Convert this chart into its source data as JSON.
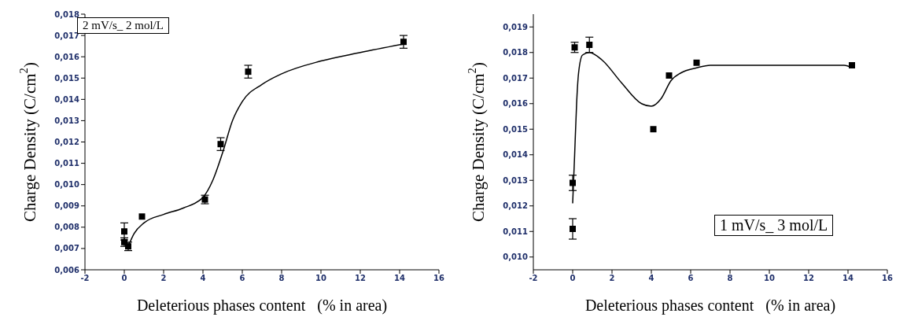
{
  "chart_data": [
    {
      "type": "scatter",
      "xlabel": "Deleterious phases content   (% in area)",
      "ylabel": "Charge Density (C/cm$^{2}$)",
      "annotations": [
        "2 mV/s_ 2 mol/L"
      ],
      "grid": false,
      "xlim": [
        -2,
        16
      ],
      "xticks": [
        -2,
        0,
        2,
        4,
        6,
        8,
        10,
        12,
        14,
        16
      ],
      "ylim": [
        0.006,
        0.018
      ],
      "yticks": [
        {
          "value": 0.006,
          "label": "0,006"
        },
        {
          "value": 0.007,
          "label": "0,007"
        },
        {
          "value": 0.008,
          "label": "0,008"
        },
        {
          "value": 0.009,
          "label": "0,009"
        },
        {
          "value": 0.01,
          "label": "0,010"
        },
        {
          "value": 0.011,
          "label": "0,011"
        },
        {
          "value": 0.012,
          "label": "0,012"
        },
        {
          "value": 0.013,
          "label": "0,013"
        },
        {
          "value": 0.014,
          "label": "0,014"
        },
        {
          "value": 0.015,
          "label": "0,015"
        },
        {
          "value": 0.016,
          "label": "0,016"
        },
        {
          "value": 0.017,
          "label": "0,017"
        },
        {
          "value": 0.018,
          "label": "0,018"
        }
      ],
      "series": [
        {
          "marker": "square",
          "color": "#000000",
          "x": [
            0,
            0,
            0.2,
            0.9,
            4.1,
            4.9,
            6.3,
            14.2
          ],
          "values": [
            0.0078,
            0.0073,
            0.0071,
            0.0085,
            0.0093,
            0.0119,
            0.0153,
            0.0167
          ],
          "errors": [
            0.0004,
            0.0002,
            0.0002,
            null,
            0.0002,
            0.0003,
            0.0003,
            0.0003
          ]
        },
        {
          "type": "line",
          "color": "#000000",
          "x": [
            0.2,
            0.5,
            1,
            2,
            3,
            4,
            4.5,
            5,
            5.5,
            6,
            7,
            8,
            10,
            12,
            14.2
          ],
          "values": [
            0.0071,
            0.0077,
            0.0082,
            0.0086,
            0.0089,
            0.0094,
            0.0102,
            0.0115,
            0.013,
            0.0139,
            0.0147,
            0.0152,
            0.0158,
            0.0162,
            0.0166
          ]
        }
      ]
    },
    {
      "type": "scatter",
      "xlabel": "Deleterious phases content   (% in area)",
      "ylabel": "Charge Density  (C/cm$^{2}$)",
      "annotations": [
        "1 mV/s_ 3 mol/L"
      ],
      "grid": false,
      "xlim": [
        -2,
        16
      ],
      "xticks": [
        -2,
        0,
        2,
        4,
        6,
        8,
        10,
        12,
        14,
        16
      ],
      "ylim": [
        0.0095,
        0.0195
      ],
      "yticks": [
        {
          "value": 0.01,
          "label": "0,010"
        },
        {
          "value": 0.011,
          "label": "0,011"
        },
        {
          "value": 0.012,
          "label": "0,012"
        },
        {
          "value": 0.013,
          "label": "0,013"
        },
        {
          "value": 0.014,
          "label": "0,014"
        },
        {
          "value": 0.015,
          "label": "0,015"
        },
        {
          "value": 0.016,
          "label": "0,016"
        },
        {
          "value": 0.017,
          "label": "0,017"
        },
        {
          "value": 0.018,
          "label": "0,018"
        },
        {
          "value": 0.019,
          "label": "0,019"
        }
      ],
      "series": [
        {
          "marker": "square",
          "color": "#000000",
          "x": [
            0,
            0,
            0.1,
            0.85,
            4.1,
            4.9,
            6.3,
            14.2
          ],
          "values": [
            0.0111,
            0.0129,
            0.0182,
            0.0183,
            0.015,
            0.0171,
            0.0176,
            0.0175
          ],
          "errors": [
            0.0004,
            0.0003,
            0.0002,
            0.0003,
            null,
            null,
            null,
            null
          ]
        },
        {
          "type": "line",
          "color": "#000000",
          "x": [
            0,
            0.1,
            0.2,
            0.3,
            0.5,
            0.85,
            1.5,
            2.5,
            3.5,
            4,
            4.5,
            5,
            5.5,
            6.3,
            7,
            13.8,
            14.2
          ],
          "values": [
            0.0121,
            0.014,
            0.016,
            0.0172,
            0.0179,
            0.018,
            0.0177,
            0.0168,
            0.016,
            0.0159,
            0.0162,
            0.0169,
            0.0172,
            0.0174,
            0.0175,
            0.0175,
            0.0174
          ]
        }
      ]
    }
  ]
}
